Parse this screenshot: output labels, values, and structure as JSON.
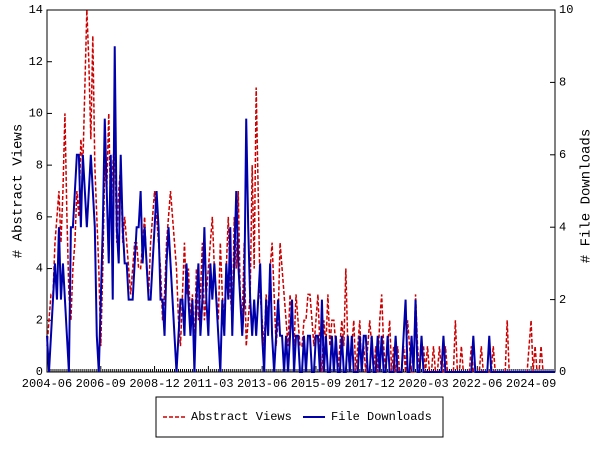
{
  "chart_data": {
    "type": "line",
    "y_label": "# Abstract Views",
    "y2_label": "# File Downloads",
    "ylim": [
      0,
      14
    ],
    "yticks": [
      0,
      2,
      4,
      6,
      8,
      10,
      12,
      14
    ],
    "y2lim": [
      0,
      10
    ],
    "y2ticks": [
      0,
      2,
      4,
      6,
      8,
      10
    ],
    "categories": [
      "2004-06",
      null,
      null,
      null,
      null,
      null,
      null,
      null,
      null,
      null,
      null,
      null,
      null,
      null,
      null,
      null,
      null,
      null,
      null,
      null,
      null,
      null,
      null,
      null,
      null,
      null,
      null,
      "2006-09",
      null,
      null,
      null,
      null,
      null,
      null,
      null,
      null,
      null,
      null,
      null,
      null,
      null,
      null,
      null,
      null,
      null,
      null,
      null,
      null,
      null,
      null,
      null,
      null,
      null,
      null,
      "2008-12",
      null,
      null,
      null,
      null,
      null,
      null,
      null,
      null,
      null,
      null,
      null,
      null,
      null,
      null,
      null,
      null,
      null,
      null,
      null,
      null,
      null,
      null,
      null,
      null,
      null,
      null,
      "2011-03",
      null,
      null,
      null,
      null,
      null,
      null,
      null,
      null,
      null,
      null,
      null,
      null,
      null,
      null,
      null,
      null,
      null,
      null,
      null,
      null,
      null,
      null,
      null,
      null,
      null,
      null,
      "2013-06",
      null,
      null,
      null,
      null,
      null,
      null,
      null,
      null,
      null,
      null,
      null,
      null,
      null,
      null,
      null,
      null,
      null,
      null,
      null,
      null,
      null,
      null,
      null,
      null,
      null,
      null,
      "2015-09",
      null,
      null,
      null,
      null,
      null,
      null,
      null,
      null,
      null,
      null,
      null,
      null,
      null,
      null,
      null,
      null,
      null,
      null,
      null,
      null,
      null,
      null,
      null,
      null,
      null,
      null,
      "2017-12",
      null,
      null,
      null,
      null,
      null,
      null,
      null,
      null,
      null,
      null,
      null,
      null,
      null,
      null,
      null,
      null,
      null,
      null,
      null,
      null,
      null,
      null,
      null,
      null,
      null,
      null,
      "2020-03",
      null,
      null,
      null,
      null,
      null,
      null,
      null,
      null,
      null,
      null,
      null,
      null,
      null,
      null,
      null,
      null,
      null,
      null,
      null,
      null,
      null,
      null,
      null,
      null,
      null,
      null,
      "2022-06",
      null,
      null,
      null,
      null,
      null,
      null,
      null,
      null,
      null,
      null,
      null,
      null,
      null,
      null,
      null,
      null,
      null,
      null,
      null,
      null,
      null,
      null,
      null,
      null,
      null,
      null,
      "2024-09",
      null,
      null,
      null,
      null,
      null,
      null,
      null,
      null,
      null,
      null,
      null,
      null
    ],
    "series": [
      {
        "name": "Abstract Views",
        "color": "#cc0000",
        "dash": true,
        "values": [
          1,
          2,
          3,
          3,
          5,
          6,
          7,
          5,
          7,
          10,
          6,
          3,
          2,
          4,
          5,
          7,
          6,
          9,
          8,
          11,
          14,
          12,
          9,
          13,
          8,
          6,
          4,
          1,
          4,
          8,
          7,
          10,
          6,
          8,
          9,
          5,
          7,
          8,
          5,
          6,
          5,
          4,
          3,
          4,
          5,
          5,
          4,
          4,
          5,
          6,
          4,
          3,
          5,
          6,
          7,
          6,
          5,
          4,
          2,
          3,
          5,
          6,
          7,
          6,
          5,
          4,
          2,
          1,
          3,
          5,
          3,
          4,
          2,
          3,
          1,
          4,
          2,
          3,
          5,
          2,
          3,
          4,
          5,
          6,
          4,
          3,
          2,
          5,
          3,
          2,
          4,
          6,
          3,
          2,
          6,
          4,
          7,
          3,
          2,
          5,
          1,
          2,
          3,
          8,
          4,
          11,
          7,
          3,
          2,
          1,
          3,
          2,
          4,
          5,
          3,
          1,
          2,
          5,
          4,
          3,
          2,
          1,
          3,
          2,
          1,
          3,
          2,
          1,
          1,
          2,
          2,
          3,
          3,
          2,
          1,
          2,
          3,
          1,
          0,
          2,
          1,
          3,
          1,
          2,
          2,
          1,
          0,
          1,
          2,
          1,
          4,
          1,
          0,
          1,
          2,
          0,
          1,
          2,
          0,
          1,
          0,
          1,
          2,
          1,
          0,
          1,
          0,
          2,
          3,
          1,
          0,
          1,
          2,
          0,
          1,
          0,
          1,
          0,
          0,
          1,
          0,
          2,
          1,
          0,
          0,
          3,
          1,
          0,
          1,
          1,
          0,
          1,
          0,
          0,
          1,
          0,
          0,
          1,
          0,
          0,
          1,
          0,
          0,
          0,
          0,
          2,
          0,
          0,
          1,
          0,
          0,
          0,
          0,
          1,
          0,
          0,
          0,
          0,
          1,
          0,
          0,
          0,
          0,
          0,
          1,
          0,
          0,
          0,
          0,
          0,
          0,
          2,
          0,
          0,
          0,
          0,
          0,
          0,
          0,
          0,
          0,
          0,
          1,
          2,
          0,
          1,
          0,
          0,
          1,
          0,
          0,
          0,
          0,
          0,
          0,
          0
        ]
      },
      {
        "name": "File Downloads",
        "color": "#0000aa",
        "axis": "y2",
        "values": [
          1,
          0,
          1,
          2,
          3,
          2,
          4,
          2,
          3,
          2,
          1,
          0,
          4,
          4,
          5,
          6,
          6,
          4,
          6,
          5,
          4,
          5,
          6,
          5,
          4,
          1,
          0,
          2,
          4,
          7,
          5,
          3,
          6,
          2,
          9,
          4,
          3,
          6,
          4,
          3,
          3,
          2,
          2,
          2,
          3,
          4,
          4,
          5,
          3,
          4,
          3,
          2,
          2,
          3,
          4,
          5,
          4,
          2,
          2,
          1,
          3,
          4,
          3,
          2,
          1,
          0,
          1,
          2,
          2,
          1,
          3,
          2,
          1,
          2,
          0,
          2,
          3,
          1,
          2,
          4,
          2,
          1,
          3,
          2,
          3,
          2,
          1,
          0,
          2,
          1,
          3,
          2,
          4,
          1,
          3,
          5,
          3,
          2,
          1,
          2,
          7,
          4,
          2,
          1,
          2,
          1,
          2,
          3,
          1,
          0,
          2,
          1,
          3,
          1,
          0,
          1,
          2,
          1,
          1,
          0,
          1,
          0,
          1,
          2,
          0,
          1,
          1,
          0,
          0,
          1,
          0,
          1,
          1,
          0,
          0,
          1,
          1,
          0,
          2,
          0,
          1,
          0,
          0,
          1,
          0,
          1,
          0,
          0,
          1,
          0,
          0,
          1,
          0,
          1,
          0,
          0,
          0,
          1,
          0,
          1,
          1,
          0,
          0,
          1,
          0,
          0,
          1,
          0,
          1,
          0,
          0,
          1,
          0,
          0,
          0,
          1,
          0,
          0,
          0,
          1,
          2,
          0,
          0,
          1,
          0,
          2,
          0,
          0,
          1,
          0,
          0,
          0,
          0,
          0,
          0,
          0,
          0,
          0,
          0,
          1,
          0,
          0,
          0,
          0,
          0,
          0,
          0,
          0,
          0,
          0,
          0,
          0,
          0,
          0,
          1,
          0,
          0,
          0,
          0,
          0,
          0,
          0,
          1,
          0,
          0,
          0,
          0,
          0,
          0,
          0,
          0,
          0,
          0,
          0,
          0,
          0,
          0,
          0,
          0,
          0,
          0,
          0,
          0,
          0,
          0,
          0,
          0,
          0,
          0,
          0,
          0,
          0,
          0,
          0,
          0,
          0
        ]
      }
    ]
  }
}
